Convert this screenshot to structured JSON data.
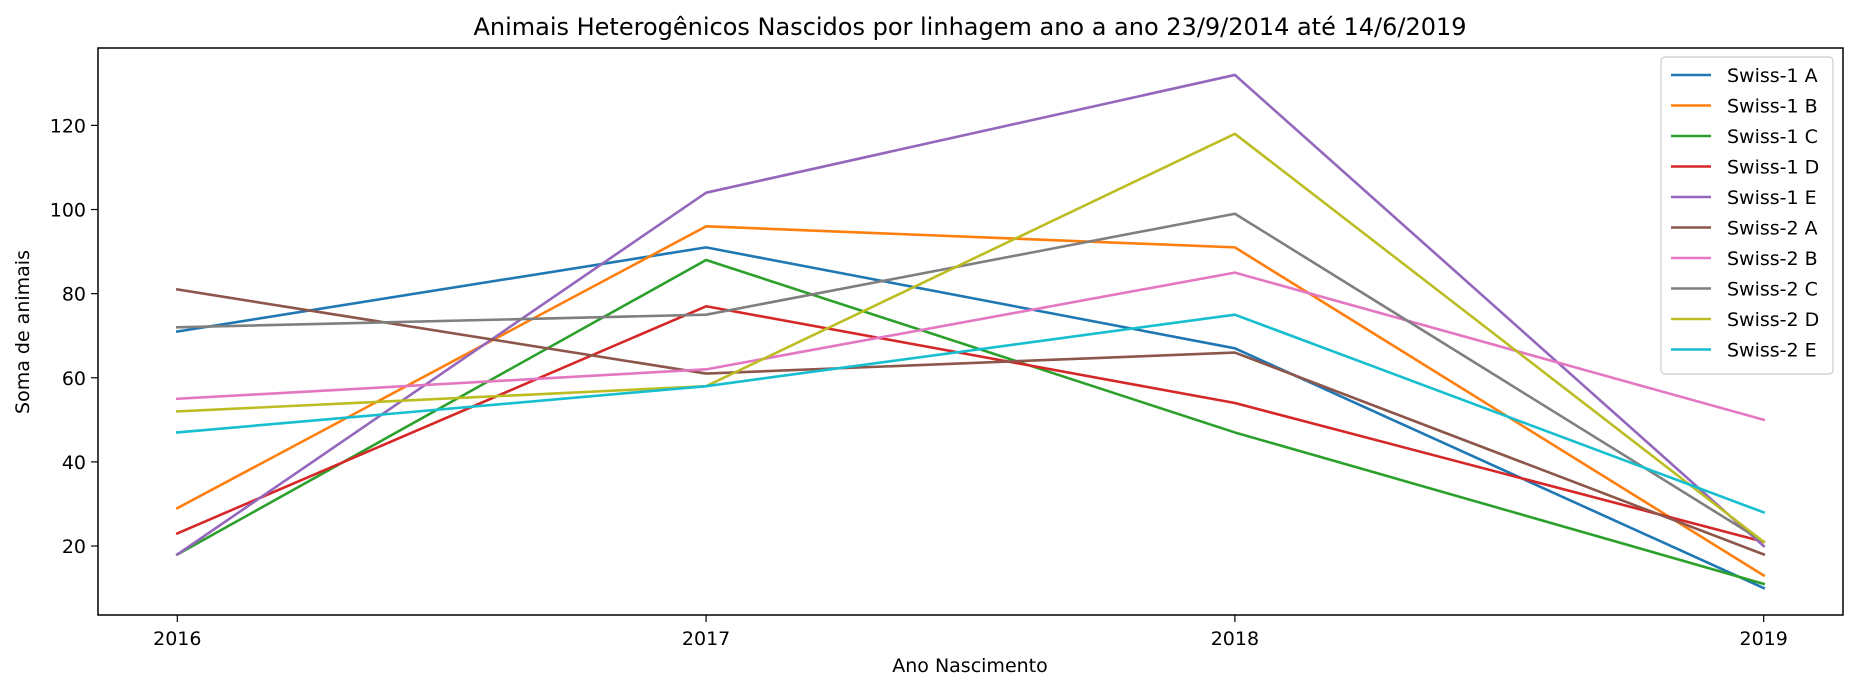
{
  "chart_data": {
    "type": "line",
    "title": "Animais Heterogênicos Nascidos por linhagem ano a ano 23/9/2014 até 14/6/2019",
    "xlabel": "Ano Nascimento",
    "ylabel": "Soma de animais",
    "categories": [
      "2016",
      "2017",
      "2018",
      "2019"
    ],
    "x": [
      2016,
      2017,
      2018,
      2019
    ],
    "xlim": [
      2015.85,
      2019.15
    ],
    "ylim": [
      3.6,
      138.4
    ],
    "yticks": [
      20,
      40,
      60,
      80,
      100,
      120
    ],
    "ytick_labels": [
      "20",
      "40",
      "60",
      "80",
      "100",
      "120"
    ],
    "grid": false,
    "legend_position": "top-right",
    "series": [
      {
        "name": "Swiss-1 A",
        "color": "#1f77b4",
        "values": [
          71,
          91,
          67,
          10
        ]
      },
      {
        "name": "Swiss-1 B",
        "color": "#ff7f0e",
        "values": [
          29,
          96,
          91,
          13
        ]
      },
      {
        "name": "Swiss-1 C",
        "color": "#2ca02c",
        "values": [
          18,
          88,
          47,
          11
        ]
      },
      {
        "name": "Swiss-1 D",
        "color": "#d62728",
        "values": [
          23,
          77,
          54,
          21
        ]
      },
      {
        "name": "Swiss-1 E",
        "color": "#9467bd",
        "values": [
          18,
          104,
          132,
          20
        ]
      },
      {
        "name": "Swiss-2 A",
        "color": "#8c564b",
        "values": [
          81,
          61,
          66,
          18
        ]
      },
      {
        "name": "Swiss-2 B",
        "color": "#e377c2",
        "values": [
          55,
          62,
          85,
          50
        ]
      },
      {
        "name": "Swiss-2 C",
        "color": "#7f7f7f",
        "values": [
          72,
          75,
          99,
          21
        ]
      },
      {
        "name": "Swiss-2 D",
        "color": "#bcbd22",
        "values": [
          52,
          58,
          118,
          21
        ]
      },
      {
        "name": "Swiss-2 E",
        "color": "#17becf",
        "values": [
          47,
          58,
          75,
          28
        ]
      }
    ]
  }
}
